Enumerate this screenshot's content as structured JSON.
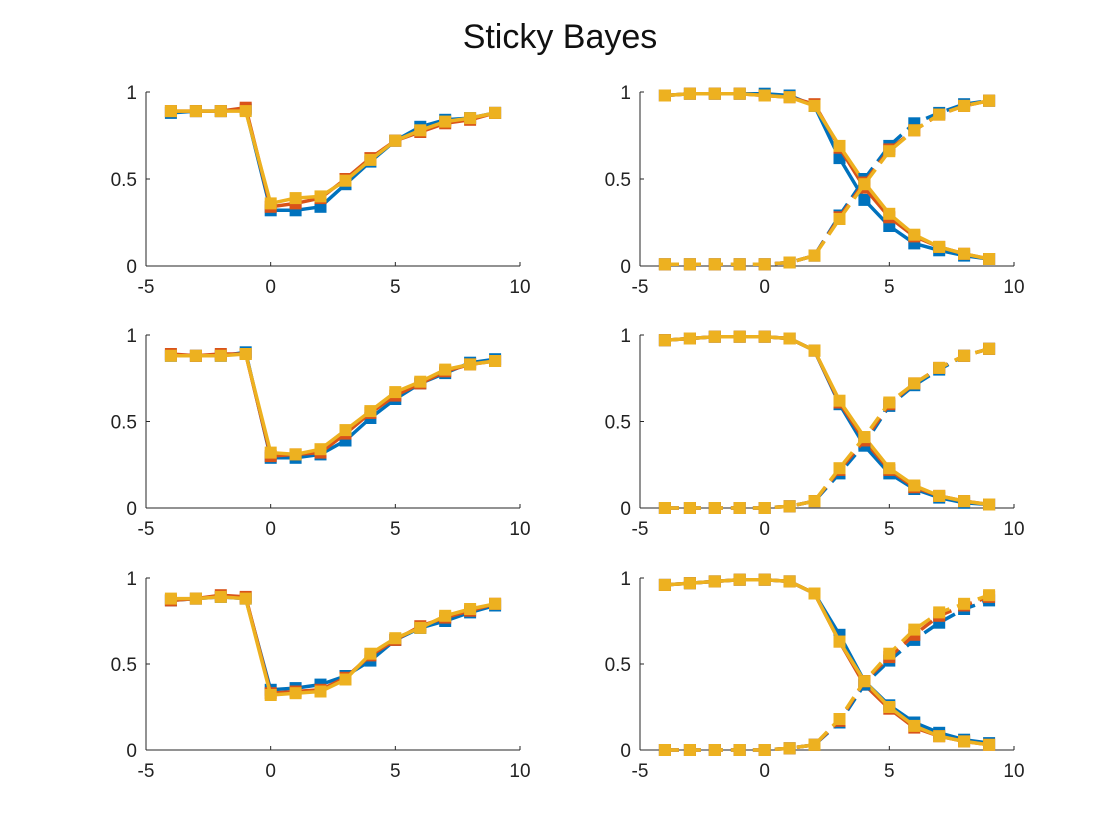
{
  "title": "Sticky Bayes",
  "colors": {
    "blue": "#0072BD",
    "orange": "#D95319",
    "yellow": "#EDB120",
    "axis": "#262626"
  },
  "chart_data": [
    {
      "type": "line",
      "position": "top-left",
      "x": [
        -4,
        -3,
        -2,
        -1,
        0,
        1,
        2,
        3,
        4,
        5,
        6,
        7,
        8,
        9
      ],
      "xlim": [
        -5,
        10
      ],
      "ylim": [
        0,
        1
      ],
      "xticks": [
        "-5",
        "0",
        "5",
        "10"
      ],
      "yticks": [
        "0",
        "0.5",
        "1"
      ],
      "series": [
        {
          "color": "blue",
          "dash": false,
          "values": [
            0.88,
            0.89,
            0.89,
            0.9,
            0.32,
            0.32,
            0.34,
            0.47,
            0.6,
            0.72,
            0.8,
            0.84,
            0.85,
            0.88
          ]
        },
        {
          "color": "orange",
          "dash": false,
          "values": [
            0.89,
            0.89,
            0.89,
            0.91,
            0.34,
            0.36,
            0.39,
            0.5,
            0.62,
            0.72,
            0.77,
            0.82,
            0.84,
            0.88
          ]
        },
        {
          "color": "yellow",
          "dash": false,
          "values": [
            0.89,
            0.89,
            0.89,
            0.89,
            0.36,
            0.39,
            0.4,
            0.49,
            0.61,
            0.72,
            0.78,
            0.83,
            0.85,
            0.88
          ]
        }
      ]
    },
    {
      "type": "line",
      "position": "top-right",
      "x": [
        -4,
        -3,
        -2,
        -1,
        0,
        1,
        2,
        3,
        4,
        5,
        6,
        7,
        8,
        9
      ],
      "xlim": [
        -5,
        10
      ],
      "ylim": [
        0,
        1
      ],
      "xticks": [
        "-5",
        "0",
        "5",
        "10"
      ],
      "yticks": [
        "0",
        "0.5",
        "1"
      ],
      "series": [
        {
          "color": "blue",
          "dash": false,
          "values": [
            0.98,
            0.99,
            0.99,
            0.99,
            0.99,
            0.98,
            0.92,
            0.62,
            0.38,
            0.23,
            0.13,
            0.09,
            0.06,
            0.04
          ]
        },
        {
          "color": "orange",
          "dash": false,
          "values": [
            0.98,
            0.99,
            0.99,
            0.99,
            0.98,
            0.97,
            0.93,
            0.68,
            0.45,
            0.28,
            0.17,
            0.11,
            0.07,
            0.04
          ]
        },
        {
          "color": "yellow",
          "dash": false,
          "values": [
            0.98,
            0.99,
            0.99,
            0.99,
            0.98,
            0.97,
            0.92,
            0.69,
            0.48,
            0.3,
            0.18,
            0.11,
            0.07,
            0.04
          ]
        },
        {
          "color": "blue",
          "dash": true,
          "values": [
            0.01,
            0.01,
            0.01,
            0.01,
            0.01,
            0.02,
            0.06,
            0.29,
            0.5,
            0.69,
            0.82,
            0.88,
            0.93,
            0.95
          ]
        },
        {
          "color": "orange",
          "dash": true,
          "values": [
            0.01,
            0.01,
            0.01,
            0.01,
            0.01,
            0.02,
            0.06,
            0.28,
            0.48,
            0.67,
            0.78,
            0.87,
            0.92,
            0.95
          ]
        },
        {
          "color": "yellow",
          "dash": true,
          "values": [
            0.01,
            0.01,
            0.01,
            0.01,
            0.01,
            0.02,
            0.06,
            0.27,
            0.47,
            0.66,
            0.78,
            0.87,
            0.92,
            0.95
          ]
        }
      ]
    },
    {
      "type": "line",
      "position": "middle-left",
      "x": [
        -4,
        -3,
        -2,
        -1,
        0,
        1,
        2,
        3,
        4,
        5,
        6,
        7,
        8,
        9
      ],
      "xlim": [
        -5,
        10
      ],
      "ylim": [
        0,
        1
      ],
      "xticks": [
        "-5",
        "0",
        "5",
        "10"
      ],
      "yticks": [
        "0",
        "0.5",
        "1"
      ],
      "series": [
        {
          "color": "blue",
          "dash": false,
          "values": [
            0.88,
            0.88,
            0.88,
            0.9,
            0.29,
            0.29,
            0.31,
            0.39,
            0.52,
            0.63,
            0.72,
            0.78,
            0.84,
            0.86
          ]
        },
        {
          "color": "orange",
          "dash": false,
          "values": [
            0.89,
            0.88,
            0.89,
            0.89,
            0.3,
            0.31,
            0.32,
            0.43,
            0.55,
            0.65,
            0.72,
            0.79,
            0.83,
            0.85
          ]
        },
        {
          "color": "yellow",
          "dash": false,
          "values": [
            0.88,
            0.88,
            0.88,
            0.89,
            0.32,
            0.31,
            0.34,
            0.45,
            0.56,
            0.67,
            0.73,
            0.8,
            0.83,
            0.85
          ]
        }
      ]
    },
    {
      "type": "line",
      "position": "middle-right",
      "x": [
        -4,
        -3,
        -2,
        -1,
        0,
        1,
        2,
        3,
        4,
        5,
        6,
        7,
        8,
        9
      ],
      "xlim": [
        -5,
        10
      ],
      "ylim": [
        0,
        1
      ],
      "xticks": [
        "-5",
        "0",
        "5",
        "10"
      ],
      "yticks": [
        "0",
        "0.5",
        "1"
      ],
      "series": [
        {
          "color": "blue",
          "dash": false,
          "values": [
            0.97,
            0.98,
            0.99,
            0.99,
            0.99,
            0.98,
            0.91,
            0.6,
            0.36,
            0.2,
            0.11,
            0.06,
            0.03,
            0.02
          ]
        },
        {
          "color": "orange",
          "dash": false,
          "values": [
            0.97,
            0.98,
            0.99,
            0.99,
            0.99,
            0.98,
            0.91,
            0.61,
            0.39,
            0.22,
            0.12,
            0.07,
            0.04,
            0.02
          ]
        },
        {
          "color": "yellow",
          "dash": false,
          "values": [
            0.97,
            0.98,
            0.99,
            0.99,
            0.99,
            0.98,
            0.91,
            0.62,
            0.41,
            0.23,
            0.13,
            0.07,
            0.04,
            0.02
          ]
        },
        {
          "color": "blue",
          "dash": true,
          "values": [
            0.0,
            0.0,
            0.0,
            0.0,
            0.0,
            0.01,
            0.04,
            0.2,
            0.37,
            0.59,
            0.71,
            0.8,
            0.88,
            0.92
          ]
        },
        {
          "color": "orange",
          "dash": true,
          "values": [
            0.0,
            0.0,
            0.0,
            0.0,
            0.0,
            0.01,
            0.04,
            0.22,
            0.39,
            0.6,
            0.72,
            0.81,
            0.88,
            0.92
          ]
        },
        {
          "color": "yellow",
          "dash": true,
          "values": [
            0.0,
            0.0,
            0.0,
            0.0,
            0.0,
            0.01,
            0.04,
            0.23,
            0.41,
            0.61,
            0.72,
            0.81,
            0.88,
            0.92
          ]
        }
      ]
    },
    {
      "type": "line",
      "position": "bottom-left",
      "x": [
        -4,
        -3,
        -2,
        -1,
        0,
        1,
        2,
        3,
        4,
        5,
        6,
        7,
        8,
        9
      ],
      "xlim": [
        -5,
        10
      ],
      "ylim": [
        0,
        1
      ],
      "xticks": [
        "-5",
        "0",
        "5",
        "10"
      ],
      "yticks": [
        "0",
        "0.5",
        "1"
      ],
      "series": [
        {
          "color": "blue",
          "dash": false,
          "values": [
            0.87,
            0.88,
            0.89,
            0.88,
            0.35,
            0.36,
            0.38,
            0.43,
            0.52,
            0.64,
            0.71,
            0.75,
            0.8,
            0.84
          ]
        },
        {
          "color": "orange",
          "dash": false,
          "values": [
            0.87,
            0.88,
            0.9,
            0.89,
            0.33,
            0.34,
            0.35,
            0.42,
            0.55,
            0.64,
            0.72,
            0.77,
            0.81,
            0.85
          ]
        },
        {
          "color": "yellow",
          "dash": false,
          "values": [
            0.88,
            0.88,
            0.89,
            0.88,
            0.32,
            0.33,
            0.34,
            0.41,
            0.56,
            0.65,
            0.71,
            0.78,
            0.82,
            0.85
          ]
        }
      ]
    },
    {
      "type": "line",
      "position": "bottom-right",
      "x": [
        -4,
        -3,
        -2,
        -1,
        0,
        1,
        2,
        3,
        4,
        5,
        6,
        7,
        8,
        9
      ],
      "xlim": [
        -5,
        10
      ],
      "ylim": [
        0,
        1
      ],
      "xticks": [
        "-5",
        "0",
        "5",
        "10"
      ],
      "yticks": [
        "0",
        "0.5",
        "1"
      ],
      "series": [
        {
          "color": "blue",
          "dash": false,
          "values": [
            0.96,
            0.97,
            0.98,
            0.99,
            0.99,
            0.98,
            0.91,
            0.67,
            0.4,
            0.26,
            0.16,
            0.1,
            0.06,
            0.04
          ]
        },
        {
          "color": "orange",
          "dash": false,
          "values": [
            0.96,
            0.97,
            0.98,
            0.99,
            0.99,
            0.98,
            0.91,
            0.63,
            0.38,
            0.24,
            0.13,
            0.08,
            0.05,
            0.03
          ]
        },
        {
          "color": "yellow",
          "dash": false,
          "values": [
            0.96,
            0.97,
            0.98,
            0.99,
            0.99,
            0.98,
            0.91,
            0.63,
            0.4,
            0.25,
            0.14,
            0.08,
            0.05,
            0.03
          ]
        },
        {
          "color": "blue",
          "dash": true,
          "values": [
            0.0,
            0.0,
            0.0,
            0.0,
            0.0,
            0.01,
            0.03,
            0.16,
            0.38,
            0.52,
            0.64,
            0.74,
            0.82,
            0.87
          ]
        },
        {
          "color": "orange",
          "dash": true,
          "values": [
            0.0,
            0.0,
            0.0,
            0.0,
            0.0,
            0.01,
            0.03,
            0.17,
            0.4,
            0.54,
            0.67,
            0.78,
            0.84,
            0.89
          ]
        },
        {
          "color": "yellow",
          "dash": true,
          "values": [
            0.0,
            0.0,
            0.0,
            0.0,
            0.0,
            0.01,
            0.03,
            0.18,
            0.4,
            0.56,
            0.7,
            0.8,
            0.85,
            0.9
          ]
        }
      ]
    }
  ]
}
